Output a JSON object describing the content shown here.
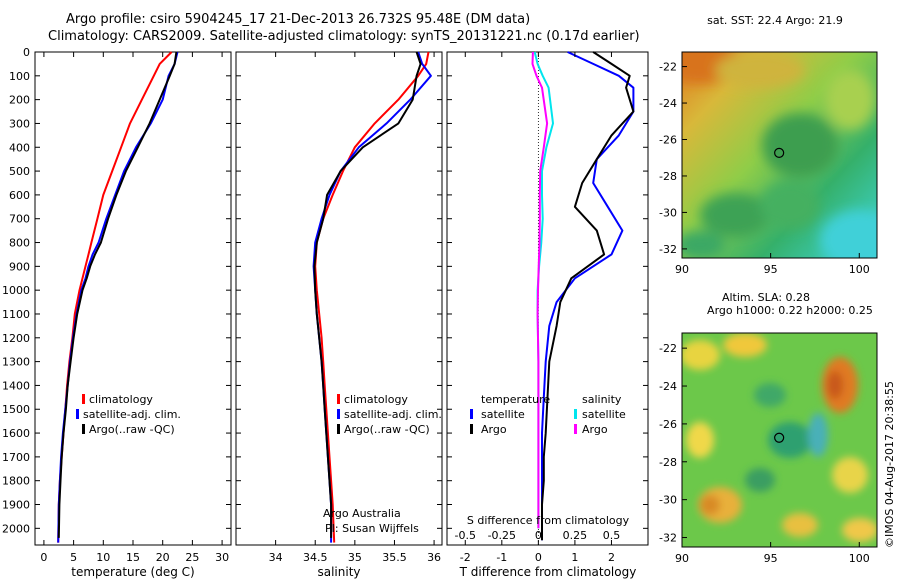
{
  "title": {
    "line1": "Argo profile: csiro 5904245_17 21-Dec-2013 26.732S 95.48E (DM data)",
    "line2": "Climatology: CARS2009. Satellite-adjusted climatology: synTS_20131221.nc (0.17d earlier)"
  },
  "depth_axis": {
    "ticks": [
      0,
      100,
      200,
      300,
      400,
      500,
      600,
      700,
      800,
      900,
      1000,
      1100,
      1200,
      1300,
      1400,
      1500,
      1600,
      1700,
      1800,
      1900,
      2000
    ],
    "range": [
      0,
      2070
    ]
  },
  "chart_data": [
    {
      "type": "line",
      "name": "temperature",
      "xlabel": "temperature (deg C)",
      "xlim": [
        -1.5,
        31.5
      ],
      "ylim": [
        0,
        2070
      ],
      "xticks": [
        0,
        5,
        10,
        15,
        20,
        25,
        30
      ],
      "legend": [
        "climatology",
        "satellite-adj. clim.",
        "Argo(..raw -QC)"
      ],
      "legend_position": "lower-left",
      "series": [
        {
          "name": "climatology",
          "color": "#ff0000",
          "x": [
            21.5,
            19.5,
            18.5,
            16.5,
            14.5,
            13,
            11.5,
            10,
            9,
            8,
            7.5,
            7,
            6.5,
            6,
            5.2,
            4.8,
            4.3,
            3.9,
            3.6,
            3.3,
            3,
            2.7,
            2.5,
            2.4
          ],
          "y": [
            0,
            50,
            100,
            200,
            300,
            400,
            500,
            600,
            700,
            800,
            850,
            900,
            950,
            1000,
            1100,
            1200,
            1300,
            1400,
            1500,
            1600,
            1700,
            1800,
            1900,
            2060
          ]
        },
        {
          "name": "satellite-adj. clim.",
          "color": "#0000ff",
          "x": [
            22.5,
            22,
            21,
            20,
            18,
            15.5,
            13.5,
            12,
            10.5,
            9.2,
            8.2,
            7.5,
            7,
            6.3,
            5.5,
            4.9,
            4.4,
            4,
            3.6,
            3.2,
            2.9,
            2.7,
            2.5,
            2.4
          ],
          "y": [
            0,
            50,
            100,
            200,
            300,
            400,
            500,
            600,
            700,
            800,
            850,
            900,
            950,
            1000,
            1100,
            1200,
            1300,
            1400,
            1500,
            1600,
            1700,
            1800,
            1900,
            2060
          ]
        },
        {
          "name": "Argo",
          "color": "#000000",
          "x": [
            22.3,
            22,
            21.2,
            19.5,
            17.8,
            15.8,
            13.8,
            12.2,
            10.8,
            9.6,
            8.6,
            7.8,
            7.2,
            6.5,
            5.6,
            5,
            4.5,
            4,
            3.7,
            3.3,
            3,
            2.8,
            2.6,
            2.5
          ],
          "y": [
            0,
            50,
            100,
            200,
            300,
            400,
            500,
            600,
            700,
            800,
            850,
            900,
            950,
            1000,
            1100,
            1200,
            1300,
            1400,
            1500,
            1600,
            1700,
            1800,
            1900,
            2040
          ]
        }
      ]
    },
    {
      "type": "line",
      "name": "salinity",
      "xlabel": "salinity",
      "xlim": [
        33.5,
        36.1
      ],
      "ylim": [
        0,
        2070
      ],
      "xticks": [
        34,
        34.5,
        35,
        35.5,
        36
      ],
      "xticklabels": [
        "34",
        "34.5",
        "35",
        "35.5",
        "36"
      ],
      "legend": [
        "climatology",
        "satellite-adj. clim.",
        "Argo(..raw -QC)"
      ],
      "legend_position": "lower-right",
      "annotation": [
        "Argo Australia",
        "PI: Susan Wijffels"
      ],
      "series": [
        {
          "name": "climatology",
          "color": "#ff0000",
          "x": [
            35.93,
            35.9,
            35.8,
            35.55,
            35.25,
            35.0,
            34.85,
            34.72,
            34.6,
            34.52,
            34.5,
            34.52,
            34.55,
            34.58,
            34.6,
            34.62,
            34.64,
            34.66,
            34.68,
            34.7,
            34.72,
            34.74
          ],
          "y": [
            0,
            50,
            100,
            200,
            300,
            400,
            500,
            600,
            700,
            800,
            900,
            1000,
            1100,
            1200,
            1300,
            1400,
            1500,
            1600,
            1700,
            1800,
            1900,
            2060
          ]
        },
        {
          "name": "satellite-adj. clim.",
          "color": "#0000ff",
          "x": [
            35.8,
            35.85,
            35.96,
            35.7,
            35.4,
            35.05,
            34.82,
            34.68,
            34.58,
            34.5,
            34.48,
            34.5,
            34.52,
            34.55,
            34.58,
            34.6,
            34.62,
            34.64,
            34.66,
            34.68,
            34.7,
            34.7
          ],
          "y": [
            0,
            50,
            100,
            200,
            300,
            400,
            500,
            600,
            700,
            800,
            900,
            1000,
            1100,
            1200,
            1300,
            1400,
            1500,
            1600,
            1700,
            1800,
            1900,
            2060
          ]
        },
        {
          "name": "Argo",
          "color": "#000000",
          "x": [
            35.78,
            35.83,
            35.78,
            35.73,
            35.55,
            35.1,
            34.82,
            34.65,
            34.6,
            34.52,
            34.49,
            34.5,
            34.52,
            34.55,
            34.58,
            34.6,
            34.62,
            34.64,
            34.66,
            34.68,
            34.7,
            34.7
          ],
          "y": [
            0,
            50,
            100,
            200,
            300,
            400,
            500,
            600,
            700,
            800,
            900,
            1000,
            1100,
            1200,
            1300,
            1400,
            1500,
            1600,
            1700,
            1800,
            1900,
            2040
          ]
        }
      ]
    },
    {
      "type": "line",
      "name": "difference from climatology",
      "xlabel": "T difference from climatology",
      "xlabel_top": "S difference from climatology",
      "xlim": [
        -2.5,
        3.0
      ],
      "ylim": [
        0,
        2070
      ],
      "xticks": [
        -2,
        -1,
        0,
        1,
        2
      ],
      "top_ticks": [
        -0.5,
        -0.25,
        0,
        0.25,
        0.5
      ],
      "top_ticklabels": [
        "-0.5",
        "-0.25",
        "0",
        "0.25",
        "0.5"
      ],
      "legend_headers": [
        "temperature",
        "salinity"
      ],
      "legend": [
        "satellite",
        "Argo",
        "satellite",
        "Argo"
      ],
      "series": [
        {
          "name": "temperature satellite",
          "color": "#0000ff",
          "x": [
            0.8,
            1.5,
            2.2,
            2.6,
            2.6,
            2.2,
            1.6,
            1.5,
            1.9,
            2.3,
            2.0,
            1.0,
            0.5,
            0.3,
            0.2,
            0.15,
            0.1,
            0.1,
            0.1,
            0.1,
            0.1
          ],
          "y": [
            0,
            50,
            100,
            150,
            250,
            350,
            450,
            550,
            650,
            750,
            850,
            950,
            1050,
            1150,
            1300,
            1450,
            1600,
            1700,
            1800,
            1900,
            2050
          ]
        },
        {
          "name": "temperature Argo",
          "color": "#000000",
          "x": [
            1.5,
            2.0,
            2.5,
            2.4,
            2.6,
            2.0,
            1.6,
            1.2,
            1.0,
            1.6,
            1.8,
            0.9,
            0.6,
            0.5,
            0.3,
            0.25,
            0.2,
            0.15,
            0.15,
            0.1,
            0.1
          ],
          "y": [
            0,
            50,
            100,
            150,
            250,
            350,
            450,
            550,
            650,
            750,
            850,
            950,
            1050,
            1150,
            1300,
            1450,
            1600,
            1700,
            1800,
            1900,
            2050
          ]
        },
        {
          "name": "salinity satellite",
          "color": "#00e5ee",
          "x": [
            -0.1,
            -0.02,
            0.12,
            0.28,
            0.4,
            0.22,
            0.1,
            0.1,
            0.12,
            0.08,
            0.02,
            -0.02,
            -0.02,
            -0.01,
            0,
            0,
            0,
            0,
            0,
            0,
            0
          ],
          "y": [
            0,
            50,
            100,
            150,
            300,
            400,
            500,
            600,
            700,
            800,
            900,
            1000,
            1100,
            1200,
            1300,
            1400,
            1500,
            1600,
            1700,
            1800,
            2000
          ]
        },
        {
          "name": "salinity Argo",
          "color": "#ff00ff",
          "x": [
            -0.15,
            -0.16,
            -0.05,
            0.1,
            0.24,
            0.15,
            0.05,
            0.04,
            0.04,
            0.03,
            0.01,
            -0.01,
            -0.02,
            -0.01,
            0,
            0,
            0,
            0,
            0,
            0,
            0
          ],
          "y": [
            0,
            50,
            100,
            150,
            300,
            400,
            500,
            600,
            700,
            800,
            900,
            1000,
            1100,
            1200,
            1300,
            1400,
            1500,
            1600,
            1700,
            1800,
            2000
          ]
        }
      ]
    },
    {
      "type": "heatmap",
      "name": "sat SST map",
      "title": "sat. SST: 22.4  Argo: 21.9",
      "xlim": [
        90,
        101
      ],
      "ylim": [
        -32.5,
        -21.2
      ],
      "xticks": [
        90,
        95,
        100
      ],
      "yticks": [
        -22,
        -24,
        -26,
        -28,
        -30,
        -32
      ],
      "profile_location": {
        "lon": 95.48,
        "lat": -26.732
      }
    },
    {
      "type": "heatmap",
      "name": "altimetry SLA map",
      "title": "Altim. SLA: 0.28",
      "subtitle": "Argo h1000: 0.22 h2000: 0.25",
      "xlim": [
        90,
        101
      ],
      "ylim": [
        -32.5,
        -21.2
      ],
      "xticks": [
        90,
        95,
        100
      ],
      "yticks": [
        -22,
        -24,
        -26,
        -28,
        -30,
        -32
      ],
      "profile_location": {
        "lon": 95.48,
        "lat": -26.732
      }
    }
  ],
  "credit": "©IMOS 04-Aug-2017 20:38:55"
}
